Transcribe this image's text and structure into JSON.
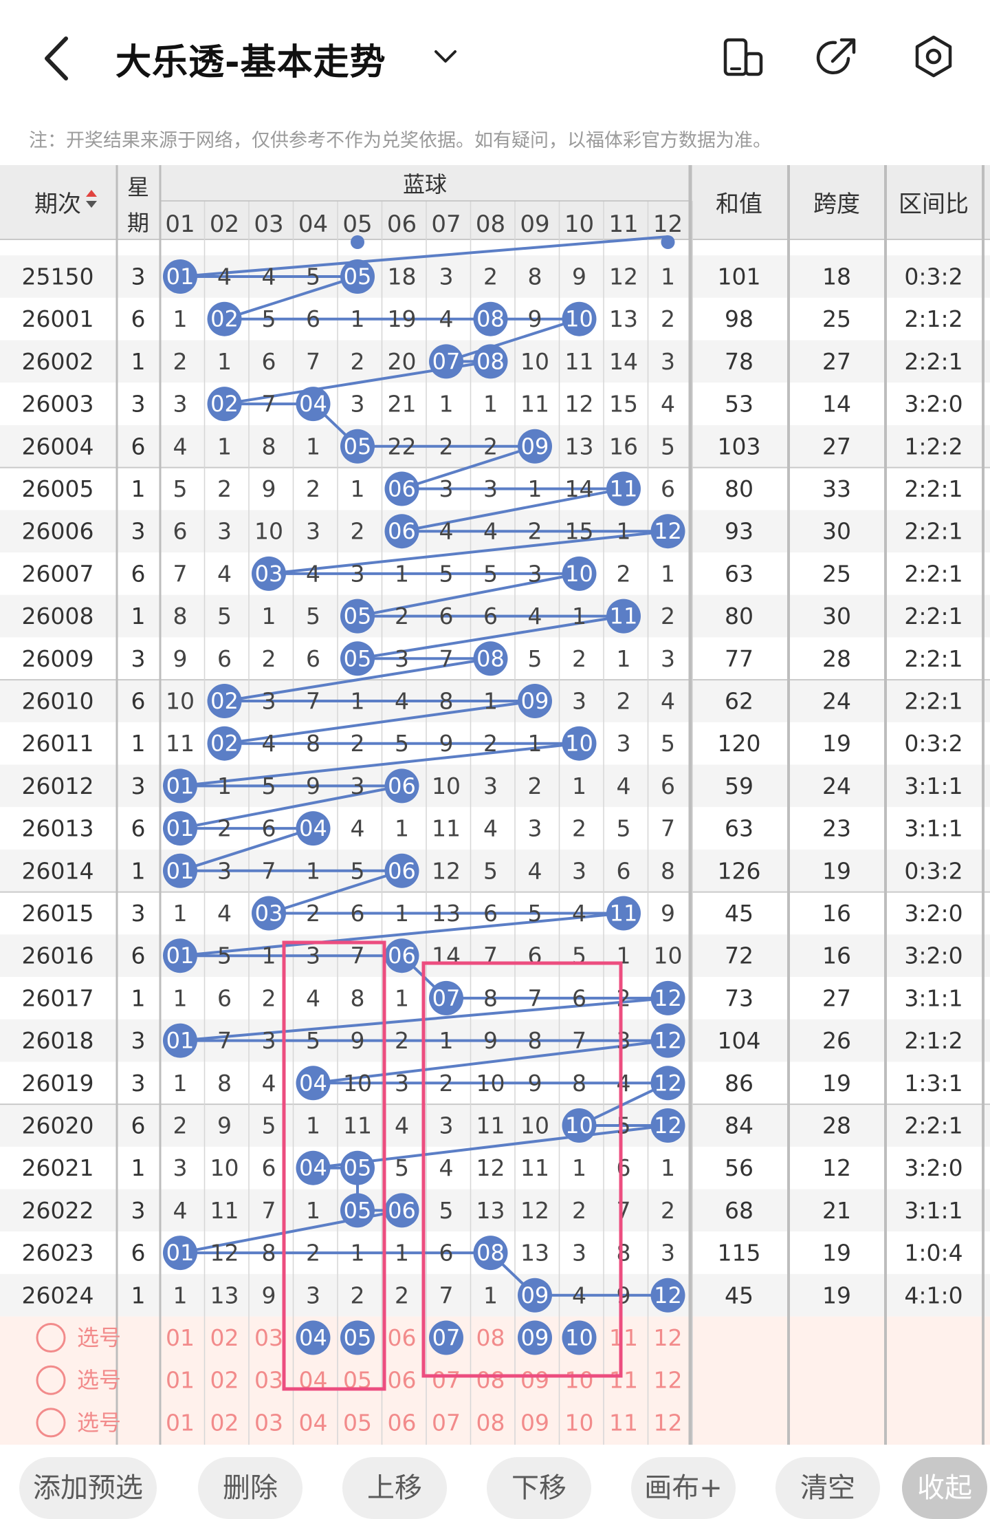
{
  "header": {
    "title": "大乐透-基本走势"
  },
  "notice": "注：开奖结果来源于网络，仅供参考不作为兑奖依据。如有疑问，以福体彩官方数据为准。",
  "table": {
    "col_period": "期次",
    "col_weekday_1": "星",
    "col_weekday_2": "期",
    "col_blue": "蓝球",
    "col_sum": "和值",
    "col_span": "跨度",
    "col_ratio": "区间比",
    "blue_numbers": [
      "01",
      "02",
      "03",
      "04",
      "05",
      "06",
      "07",
      "08",
      "09",
      "10",
      "11",
      "12"
    ],
    "rows": [
      {
        "period": "25150",
        "weekday": "3",
        "cells": [
          "01",
          "4",
          "4",
          "5",
          "05",
          "18",
          "3",
          "2",
          "8",
          "9",
          "12",
          "1"
        ],
        "sum": "101",
        "span": "18",
        "ratio": "0:3:2"
      },
      {
        "period": "26001",
        "weekday": "6",
        "cells": [
          "1",
          "02",
          "5",
          "6",
          "1",
          "19",
          "4",
          "08",
          "9",
          "10",
          "13",
          "2"
        ],
        "sum": "98",
        "span": "25",
        "ratio": "2:1:2"
      },
      {
        "period": "26002",
        "weekday": "1",
        "cells": [
          "2",
          "1",
          "6",
          "7",
          "2",
          "20",
          "07",
          "08",
          "10",
          "11",
          "14",
          "3"
        ],
        "sum": "78",
        "span": "27",
        "ratio": "2:2:1"
      },
      {
        "period": "26003",
        "weekday": "3",
        "cells": [
          "3",
          "02",
          "7",
          "04",
          "3",
          "21",
          "1",
          "1",
          "11",
          "12",
          "15",
          "4"
        ],
        "sum": "53",
        "span": "14",
        "ratio": "3:2:0"
      },
      {
        "period": "26004",
        "weekday": "6",
        "cells": [
          "4",
          "1",
          "8",
          "1",
          "05",
          "22",
          "2",
          "2",
          "09",
          "13",
          "16",
          "5"
        ],
        "sum": "103",
        "span": "27",
        "ratio": "1:2:2"
      },
      {
        "period": "26005",
        "weekday": "1",
        "cells": [
          "5",
          "2",
          "9",
          "2",
          "1",
          "06",
          "3",
          "3",
          "1",
          "14",
          "11",
          "6"
        ],
        "sum": "80",
        "span": "33",
        "ratio": "2:2:1"
      },
      {
        "period": "26006",
        "weekday": "3",
        "cells": [
          "6",
          "3",
          "10",
          "3",
          "2",
          "06",
          "4",
          "4",
          "2",
          "15",
          "1",
          "12"
        ],
        "sum": "93",
        "span": "30",
        "ratio": "2:2:1"
      },
      {
        "period": "26007",
        "weekday": "6",
        "cells": [
          "7",
          "4",
          "03",
          "4",
          "3",
          "1",
          "5",
          "5",
          "3",
          "10",
          "2",
          "1"
        ],
        "sum": "63",
        "span": "25",
        "ratio": "2:2:1"
      },
      {
        "period": "26008",
        "weekday": "1",
        "cells": [
          "8",
          "5",
          "1",
          "5",
          "05",
          "2",
          "6",
          "6",
          "4",
          "1",
          "11",
          "2"
        ],
        "sum": "80",
        "span": "30",
        "ratio": "2:2:1"
      },
      {
        "period": "26009",
        "weekday": "3",
        "cells": [
          "9",
          "6",
          "2",
          "6",
          "05",
          "3",
          "7",
          "08",
          "5",
          "2",
          "1",
          "3"
        ],
        "sum": "77",
        "span": "28",
        "ratio": "2:2:1"
      },
      {
        "period": "26010",
        "weekday": "6",
        "cells": [
          "10",
          "02",
          "3",
          "7",
          "1",
          "4",
          "8",
          "1",
          "09",
          "3",
          "2",
          "4"
        ],
        "sum": "62",
        "span": "24",
        "ratio": "2:2:1"
      },
      {
        "period": "26011",
        "weekday": "1",
        "cells": [
          "11",
          "02",
          "4",
          "8",
          "2",
          "5",
          "9",
          "2",
          "1",
          "10",
          "3",
          "5"
        ],
        "sum": "120",
        "span": "19",
        "ratio": "0:3:2"
      },
      {
        "period": "26012",
        "weekday": "3",
        "cells": [
          "01",
          "1",
          "5",
          "9",
          "3",
          "06",
          "10",
          "3",
          "2",
          "1",
          "4",
          "6"
        ],
        "sum": "59",
        "span": "24",
        "ratio": "3:1:1"
      },
      {
        "period": "26013",
        "weekday": "6",
        "cells": [
          "01",
          "2",
          "6",
          "04",
          "4",
          "1",
          "11",
          "4",
          "3",
          "2",
          "5",
          "7"
        ],
        "sum": "63",
        "span": "23",
        "ratio": "3:1:1"
      },
      {
        "period": "26014",
        "weekday": "1",
        "cells": [
          "01",
          "3",
          "7",
          "1",
          "5",
          "06",
          "12",
          "5",
          "4",
          "3",
          "6",
          "8"
        ],
        "sum": "126",
        "span": "19",
        "ratio": "0:3:2"
      },
      {
        "period": "26015",
        "weekday": "3",
        "cells": [
          "1",
          "4",
          "03",
          "2",
          "6",
          "1",
          "13",
          "6",
          "5",
          "4",
          "11",
          "9"
        ],
        "sum": "45",
        "span": "16",
        "ratio": "3:2:0"
      },
      {
        "period": "26016",
        "weekday": "6",
        "cells": [
          "01",
          "5",
          "1",
          "3",
          "7",
          "06",
          "14",
          "7",
          "6",
          "5",
          "1",
          "10"
        ],
        "sum": "72",
        "span": "16",
        "ratio": "3:2:0"
      },
      {
        "period": "26017",
        "weekday": "1",
        "cells": [
          "1",
          "6",
          "2",
          "4",
          "8",
          "1",
          "07",
          "8",
          "7",
          "6",
          "2",
          "12"
        ],
        "sum": "73",
        "span": "27",
        "ratio": "3:1:1"
      },
      {
        "period": "26018",
        "weekday": "3",
        "cells": [
          "01",
          "7",
          "3",
          "5",
          "9",
          "2",
          "1",
          "9",
          "8",
          "7",
          "3",
          "12"
        ],
        "sum": "104",
        "span": "26",
        "ratio": "2:1:2"
      },
      {
        "period": "26019",
        "weekday": "3",
        "cells": [
          "1",
          "8",
          "4",
          "04",
          "10",
          "3",
          "2",
          "10",
          "9",
          "8",
          "4",
          "12"
        ],
        "sum": "86",
        "span": "19",
        "ratio": "1:3:1"
      },
      {
        "period": "26020",
        "weekday": "6",
        "cells": [
          "2",
          "9",
          "5",
          "1",
          "11",
          "4",
          "3",
          "11",
          "10",
          "10",
          "5",
          "12"
        ],
        "sum": "84",
        "span": "28",
        "ratio": "2:2:1"
      },
      {
        "period": "26021",
        "weekday": "1",
        "cells": [
          "3",
          "10",
          "6",
          "04",
          "05",
          "5",
          "4",
          "12",
          "11",
          "1",
          "6",
          "1"
        ],
        "sum": "56",
        "span": "12",
        "ratio": "3:2:0"
      },
      {
        "period": "26022",
        "weekday": "3",
        "cells": [
          "4",
          "11",
          "7",
          "1",
          "05",
          "06",
          "5",
          "13",
          "12",
          "2",
          "7",
          "2"
        ],
        "sum": "68",
        "span": "21",
        "ratio": "3:1:1"
      },
      {
        "period": "26023",
        "weekday": "6",
        "cells": [
          "01",
          "12",
          "8",
          "2",
          "1",
          "1",
          "6",
          "08",
          "13",
          "3",
          "8",
          "3"
        ],
        "sum": "115",
        "span": "19",
        "ratio": "1:0:4"
      },
      {
        "period": "26024",
        "weekday": "1",
        "cells": [
          "1",
          "13",
          "9",
          "3",
          "2",
          "2",
          "7",
          "1",
          "09",
          "4",
          "9",
          "12"
        ],
        "sum": "45",
        "span": "19",
        "ratio": "4:1:0"
      }
    ],
    "pick_rows": [
      {
        "label": "选号",
        "selected": [
          "04",
          "05",
          "07",
          "09",
          "10"
        ]
      },
      {
        "label": "选号",
        "selected": []
      },
      {
        "label": "选号",
        "selected": []
      }
    ]
  },
  "toolbar": {
    "add": "添加预选",
    "delete": "删除",
    "up": "上移",
    "down": "下移",
    "canvas": "画布+",
    "clear": "清空",
    "collapse": "收起"
  },
  "colors": {
    "ball": "#5b7ec6",
    "line": "#5b7ec6",
    "highlight_box": "#ec4d7f",
    "pick_bg": "#fff1ec",
    "pick_text": "#f28b8b",
    "header_bg": "#ececec"
  }
}
